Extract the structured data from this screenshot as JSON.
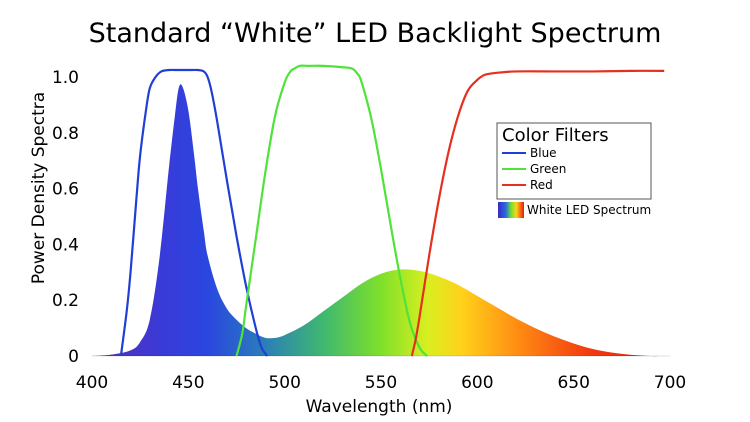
{
  "chart_data": {
    "type": "area",
    "title": "Standard “White” LED Backlight Spectrum",
    "xlabel": "Wavelength (nm)",
    "ylabel": "Power Density Spectra",
    "xlim": [
      400,
      700
    ],
    "ylim": [
      0,
      1.0
    ],
    "x_ticks": [
      "400",
      "450",
      "500",
      "550",
      "600",
      "650",
      "700"
    ],
    "y_ticks": [
      "0",
      "0.2",
      "0.4",
      "0.6",
      "0.8",
      "1.0"
    ],
    "grid": false,
    "legend": {
      "title": "Color Filters",
      "placement": "right",
      "entries": [
        {
          "name": "Blue",
          "color": "#1f3fd6"
        },
        {
          "name": "Green",
          "color": "#4fe33a"
        },
        {
          "name": "Red",
          "color": "#e6301f"
        }
      ],
      "spectrum_label": "White LED Spectrum"
    },
    "white_led_spectrum": {
      "name": "White LED Spectrum",
      "x": [
        400,
        410,
        420,
        425,
        430,
        435,
        440,
        443,
        445,
        447,
        450,
        453,
        455,
        458,
        460,
        465,
        470,
        475,
        480,
        485,
        490,
        495,
        500,
        510,
        520,
        530,
        540,
        550,
        560,
        570,
        580,
        590,
        600,
        610,
        620,
        630,
        640,
        650,
        660,
        670,
        680,
        690,
        695
      ],
      "y": [
        0.0,
        0.005,
        0.02,
        0.05,
        0.13,
        0.35,
        0.68,
        0.86,
        0.96,
        0.965,
        0.88,
        0.72,
        0.6,
        0.45,
        0.36,
        0.24,
        0.17,
        0.13,
        0.1,
        0.08,
        0.065,
        0.065,
        0.075,
        0.11,
        0.16,
        0.21,
        0.26,
        0.295,
        0.31,
        0.305,
        0.285,
        0.255,
        0.215,
        0.175,
        0.135,
        0.1,
        0.07,
        0.045,
        0.025,
        0.012,
        0.004,
        0.0,
        0.0
      ]
    },
    "series": [
      {
        "name": "Blue",
        "color": "#1f3fd6",
        "x": [
          415,
          418,
          420,
          423,
          425,
          428,
          430,
          433,
          436,
          440,
          445,
          450,
          455,
          458,
          460,
          462,
          465,
          470,
          475,
          480,
          485,
          488,
          491
        ],
        "y": [
          0.0,
          0.16,
          0.3,
          0.56,
          0.72,
          0.88,
          0.96,
          1.0,
          1.02,
          1.025,
          1.025,
          1.025,
          1.025,
          1.02,
          1.0,
          0.95,
          0.84,
          0.63,
          0.43,
          0.25,
          0.1,
          0.03,
          0.0
        ]
      },
      {
        "name": "Green",
        "color": "#4fe33a",
        "x": [
          475,
          478,
          480,
          485,
          490,
          495,
          500,
          503,
          505,
          508,
          512,
          520,
          530,
          535,
          538,
          540,
          545,
          550,
          555,
          560,
          565,
          570,
          574
        ],
        "y": [
          0.0,
          0.08,
          0.18,
          0.42,
          0.66,
          0.86,
          0.98,
          1.02,
          1.03,
          1.04,
          1.04,
          1.04,
          1.035,
          1.03,
          1.01,
          0.98,
          0.85,
          0.67,
          0.47,
          0.28,
          0.12,
          0.03,
          0.0
        ]
      },
      {
        "name": "Red",
        "color": "#e6301f",
        "x": [
          566,
          568,
          570,
          575,
          580,
          585,
          590,
          595,
          600,
          603,
          605,
          610,
          620,
          640,
          660,
          680,
          697
        ],
        "y": [
          0.0,
          0.06,
          0.14,
          0.36,
          0.56,
          0.73,
          0.86,
          0.95,
          0.99,
          1.005,
          1.01,
          1.015,
          1.02,
          1.02,
          1.02,
          1.022,
          1.022
        ]
      }
    ]
  }
}
